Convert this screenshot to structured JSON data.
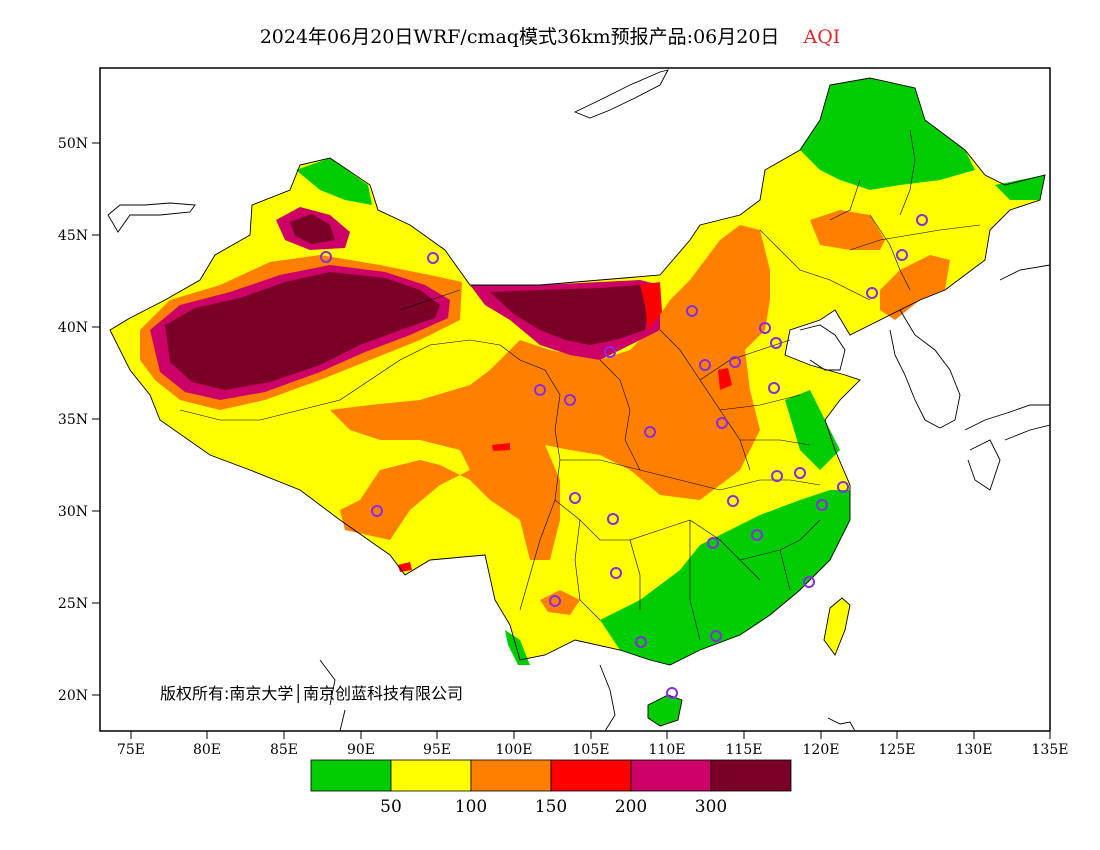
{
  "title": {
    "main": "2024年06月20日WRF/cmaq模式36km预报产品:06月20日",
    "product": "AQI",
    "product_color": "#e0282c"
  },
  "copyright": "版权所有:南京大学│南京创蓝科技有限公司",
  "axes": {
    "lat_ticks": [
      "50N",
      "45N",
      "40N",
      "35N",
      "30N",
      "25N",
      "20N"
    ],
    "lon_ticks": [
      "75E",
      "80E",
      "85E",
      "90E",
      "95E",
      "100E",
      "105E",
      "110E",
      "115E",
      "120E",
      "125E",
      "130E",
      "135E"
    ],
    "lat_range": [
      18,
      54
    ],
    "lon_range": [
      73,
      135
    ]
  },
  "legend": {
    "colors": [
      "#00cc00",
      "#ffff00",
      "#ff8000",
      "#ff0000",
      "#cc0066",
      "#7a0026"
    ],
    "labels": [
      "50",
      "100",
      "150",
      "200",
      "300"
    ]
  },
  "map_colors": {
    "green": "#00cc00",
    "yellow": "#ffff00",
    "orange": "#ff8000",
    "red": "#ff0000",
    "magenta": "#cc0066",
    "maroon": "#7a0026",
    "station": "#8a2be2"
  }
}
